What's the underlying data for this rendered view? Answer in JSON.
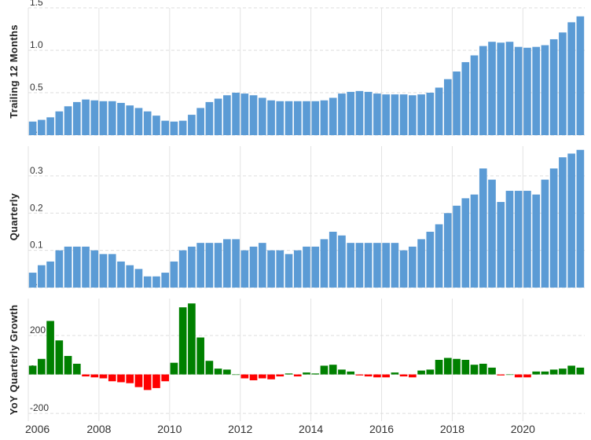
{
  "chart_data": [
    {
      "type": "bar",
      "ylabel": "Trailing 12 Months",
      "ylim": [
        0,
        1.5
      ],
      "yticks": [
        "0.0",
        "0.5",
        "1.0",
        "1.5"
      ],
      "grid": true,
      "color": "#5b9bd5",
      "values": [
        0.16,
        0.18,
        0.21,
        0.28,
        0.34,
        0.39,
        0.42,
        0.41,
        0.4,
        0.4,
        0.38,
        0.35,
        0.32,
        0.28,
        0.23,
        0.17,
        0.16,
        0.17,
        0.24,
        0.32,
        0.39,
        0.43,
        0.47,
        0.5,
        0.49,
        0.47,
        0.44,
        0.41,
        0.4,
        0.4,
        0.4,
        0.4,
        0.4,
        0.41,
        0.44,
        0.49,
        0.51,
        0.52,
        0.51,
        0.49,
        0.48,
        0.48,
        0.48,
        0.47,
        0.48,
        0.5,
        0.56,
        0.66,
        0.75,
        0.86,
        0.94,
        1.05,
        1.1,
        1.09,
        1.1,
        1.04,
        1.03,
        1.04,
        1.06,
        1.13,
        1.21,
        1.33,
        1.4
      ]
    },
    {
      "type": "bar",
      "ylabel": "Quarterly",
      "ylim": [
        0,
        0.38
      ],
      "yticks": [
        "0.0",
        "0.1",
        "0.2",
        "0.3"
      ],
      "grid": true,
      "color": "#5b9bd5",
      "values": [
        0.04,
        0.06,
        0.07,
        0.1,
        0.11,
        0.11,
        0.11,
        0.1,
        0.09,
        0.09,
        0.07,
        0.06,
        0.05,
        0.03,
        0.03,
        0.04,
        0.07,
        0.1,
        0.11,
        0.12,
        0.12,
        0.12,
        0.13,
        0.13,
        0.1,
        0.11,
        0.12,
        0.1,
        0.1,
        0.09,
        0.1,
        0.11,
        0.11,
        0.13,
        0.15,
        0.14,
        0.12,
        0.12,
        0.12,
        0.12,
        0.12,
        0.12,
        0.1,
        0.11,
        0.13,
        0.15,
        0.17,
        0.2,
        0.22,
        0.24,
        0.25,
        0.32,
        0.29,
        0.23,
        0.26,
        0.26,
        0.26,
        0.25,
        0.29,
        0.32,
        0.35,
        0.36,
        0.37
      ]
    },
    {
      "type": "bar",
      "ylabel": "YoY Quarterly Growth",
      "ylim": [
        -240,
        390
      ],
      "yticks": [
        "-200",
        "0",
        "200"
      ],
      "grid": true,
      "positive_color": "#008000",
      "negative_color": "#ff0000",
      "values": [
        45,
        80,
        275,
        175,
        95,
        55,
        -10,
        -15,
        -20,
        -35,
        -40,
        -45,
        -65,
        -80,
        -70,
        -35,
        60,
        345,
        365,
        190,
        70,
        30,
        25,
        0,
        -20,
        -30,
        -20,
        -25,
        -10,
        5,
        -10,
        10,
        5,
        45,
        50,
        25,
        15,
        -5,
        -10,
        -15,
        -15,
        10,
        -10,
        -15,
        20,
        25,
        75,
        85,
        80,
        75,
        50,
        55,
        35,
        -5,
        0,
        -15,
        -15,
        15,
        15,
        25,
        30,
        45,
        35
      ]
    }
  ],
  "x_axis": {
    "ticks": [
      "2006",
      "2008",
      "2010",
      "2012",
      "2014",
      "2016",
      "2018",
      "2020"
    ],
    "first_year": 2006,
    "periods_per_year": 4,
    "start_offset_quarters": 0
  }
}
